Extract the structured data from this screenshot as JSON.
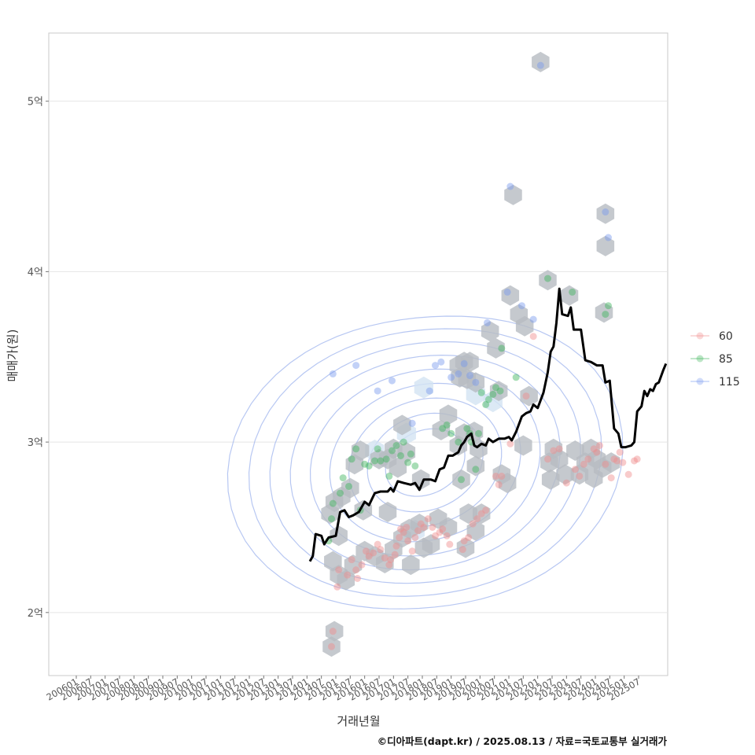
{
  "chart_data": {
    "type": "scatter",
    "xlabel": "거래년월",
    "ylabel": "매매가(원)",
    "caption": "©디아파트(dapt.kr) / 2025.08.13 / 자료=국토교통부 실거래가",
    "x_range": [
      2005.5,
      2026.2
    ],
    "ylim": [
      1.63,
      5.4
    ],
    "y_ticks": [
      {
        "value": 2,
        "label": "2억"
      },
      {
        "value": 3,
        "label": "3억"
      },
      {
        "value": 4,
        "label": "4억"
      },
      {
        "value": 5,
        "label": "5억"
      }
    ],
    "x_ticks": [
      "200601",
      "200607",
      "200701",
      "200707",
      "200801",
      "200807",
      "200901",
      "200907",
      "201001",
      "201007",
      "201101",
      "201107",
      "201201",
      "201207",
      "201301",
      "201307",
      "201401",
      "201407",
      "201501",
      "201507",
      "201601",
      "201607",
      "201701",
      "201707",
      "201801",
      "201807",
      "201901",
      "201907",
      "202001",
      "202007",
      "202101",
      "202107",
      "202201",
      "202207",
      "202301",
      "202307",
      "202401",
      "202407",
      "202501",
      "202507"
    ],
    "legend": [
      {
        "label": "60",
        "color": "#f08c8c"
      },
      {
        "label": "85",
        "color": "#3cb45a"
      },
      {
        "label": "115",
        "color": "#7799ee"
      }
    ],
    "colors": {
      "hex": "#b7bcc2",
      "hex_light": "#d3e3f3",
      "trend": "#000000",
      "contour": "#9fb4ee",
      "grid": "#e5e5e5"
    },
    "series": [
      {
        "name": "60",
        "points": [
          [
            2014.85,
            1.8
          ],
          [
            2014.9,
            1.89
          ],
          [
            2015.05,
            2.15
          ],
          [
            2015.1,
            2.25
          ],
          [
            2015.4,
            2.22
          ],
          [
            2015.55,
            2.31
          ],
          [
            2015.7,
            2.25
          ],
          [
            2015.75,
            2.2
          ],
          [
            2015.9,
            2.28
          ],
          [
            2016.05,
            2.36
          ],
          [
            2016.15,
            2.33
          ],
          [
            2016.3,
            2.35
          ],
          [
            2016.45,
            2.4
          ],
          [
            2016.55,
            2.37
          ],
          [
            2016.7,
            2.32
          ],
          [
            2016.85,
            2.28
          ],
          [
            2016.9,
            2.31
          ],
          [
            2017.05,
            2.34
          ],
          [
            2017.1,
            2.39
          ],
          [
            2017.2,
            2.44
          ],
          [
            2017.25,
            2.49
          ],
          [
            2017.35,
            2.47
          ],
          [
            2017.45,
            2.5
          ],
          [
            2017.5,
            2.42
          ],
          [
            2017.65,
            2.36
          ],
          [
            2017.75,
            2.44
          ],
          [
            2017.85,
            2.48
          ],
          [
            2017.95,
            2.52
          ],
          [
            2018.05,
            2.5
          ],
          [
            2018.2,
            2.55
          ],
          [
            2018.35,
            2.5
          ],
          [
            2018.45,
            2.45
          ],
          [
            2018.6,
            2.47
          ],
          [
            2018.7,
            2.49
          ],
          [
            2018.85,
            2.45
          ],
          [
            2018.95,
            2.4
          ],
          [
            2019.4,
            2.37
          ],
          [
            2019.45,
            2.42
          ],
          [
            2019.6,
            2.44
          ],
          [
            2019.75,
            2.52
          ],
          [
            2019.9,
            2.55
          ],
          [
            2020.05,
            2.58
          ],
          [
            2020.2,
            2.6
          ],
          [
            2020.55,
            2.8
          ],
          [
            2020.65,
            2.75
          ],
          [
            2020.75,
            2.8
          ],
          [
            2021.05,
            2.99
          ],
          [
            2021.6,
            3.27
          ],
          [
            2021.85,
            3.62
          ],
          [
            2022.35,
            2.9
          ],
          [
            2022.55,
            2.95
          ],
          [
            2022.75,
            2.96
          ],
          [
            2023.0,
            2.76
          ],
          [
            2023.3,
            2.84
          ],
          [
            2023.45,
            2.8
          ],
          [
            2023.6,
            2.87
          ],
          [
            2023.75,
            2.9
          ],
          [
            2023.95,
            2.96
          ],
          [
            2024.05,
            2.94
          ],
          [
            2024.15,
            2.98
          ],
          [
            2024.35,
            2.87
          ],
          [
            2024.55,
            2.79
          ],
          [
            2024.65,
            2.9
          ],
          [
            2024.75,
            2.89
          ],
          [
            2024.85,
            2.94
          ],
          [
            2024.95,
            2.88
          ],
          [
            2025.15,
            2.81
          ],
          [
            2025.35,
            2.89
          ],
          [
            2025.45,
            2.9
          ]
        ]
      },
      {
        "name": "85",
        "points": [
          [
            2014.75,
            2.42
          ],
          [
            2014.85,
            2.55
          ],
          [
            2014.9,
            2.64
          ],
          [
            2015.15,
            2.7
          ],
          [
            2015.25,
            2.79
          ],
          [
            2015.45,
            2.74
          ],
          [
            2015.55,
            2.9
          ],
          [
            2015.7,
            2.96
          ],
          [
            2015.85,
            2.6
          ],
          [
            2016.0,
            2.87
          ],
          [
            2016.15,
            2.86
          ],
          [
            2016.35,
            2.89
          ],
          [
            2016.45,
            2.96
          ],
          [
            2016.55,
            2.89
          ],
          [
            2016.75,
            2.9
          ],
          [
            2016.85,
            2.8
          ],
          [
            2016.95,
            2.95
          ],
          [
            2017.1,
            2.98
          ],
          [
            2017.25,
            2.92
          ],
          [
            2017.35,
            3.0
          ],
          [
            2017.5,
            2.88
          ],
          [
            2017.6,
            2.93
          ],
          [
            2017.75,
            2.86
          ],
          [
            2018.7,
            3.08
          ],
          [
            2018.85,
            3.1
          ],
          [
            2019.0,
            3.05
          ],
          [
            2019.25,
            3.0
          ],
          [
            2019.35,
            2.78
          ],
          [
            2019.55,
            3.08
          ],
          [
            2019.65,
            3.05
          ],
          [
            2019.7,
            3.0
          ],
          [
            2019.85,
            2.84
          ],
          [
            2019.95,
            3.05
          ],
          [
            2020.05,
            3.29
          ],
          [
            2020.2,
            3.22
          ],
          [
            2020.3,
            3.25
          ],
          [
            2020.45,
            3.28
          ],
          [
            2020.55,
            3.32
          ],
          [
            2020.7,
            3.3
          ],
          [
            2020.75,
            3.55
          ],
          [
            2021.25,
            3.38
          ],
          [
            2022.35,
            3.96
          ],
          [
            2023.2,
            3.88
          ],
          [
            2024.35,
            3.75
          ],
          [
            2024.45,
            3.8
          ]
        ]
      },
      {
        "name": "115",
        "points": [
          [
            2014.9,
            3.4
          ],
          [
            2015.7,
            3.45
          ],
          [
            2016.45,
            3.3
          ],
          [
            2016.95,
            3.36
          ],
          [
            2017.65,
            3.11
          ],
          [
            2018.25,
            3.3
          ],
          [
            2018.45,
            3.45
          ],
          [
            2018.65,
            3.47
          ],
          [
            2019.0,
            3.38
          ],
          [
            2019.25,
            3.4
          ],
          [
            2019.45,
            3.46
          ],
          [
            2019.65,
            3.39
          ],
          [
            2019.85,
            3.35
          ],
          [
            2020.25,
            3.7
          ],
          [
            2020.95,
            3.88
          ],
          [
            2021.05,
            4.5
          ],
          [
            2021.45,
            3.8
          ],
          [
            2021.85,
            3.72
          ],
          [
            2022.1,
            5.21
          ],
          [
            2024.35,
            4.35
          ],
          [
            2024.45,
            4.2
          ]
        ]
      }
    ],
    "trend": [
      [
        2014.1,
        2.3
      ],
      [
        2014.2,
        2.33
      ],
      [
        2014.3,
        2.46
      ],
      [
        2014.5,
        2.45
      ],
      [
        2014.6,
        2.4
      ],
      [
        2014.75,
        2.44
      ],
      [
        2015.0,
        2.45
      ],
      [
        2015.15,
        2.59
      ],
      [
        2015.3,
        2.6
      ],
      [
        2015.45,
        2.56
      ],
      [
        2015.6,
        2.57
      ],
      [
        2015.8,
        2.59
      ],
      [
        2016.0,
        2.65
      ],
      [
        2016.15,
        2.63
      ],
      [
        2016.35,
        2.7
      ],
      [
        2016.55,
        2.71
      ],
      [
        2016.8,
        2.71
      ],
      [
        2016.9,
        2.73
      ],
      [
        2017.0,
        2.71
      ],
      [
        2017.15,
        2.77
      ],
      [
        2017.35,
        2.76
      ],
      [
        2017.6,
        2.75
      ],
      [
        2017.75,
        2.76
      ],
      [
        2017.9,
        2.72
      ],
      [
        2018.05,
        2.78
      ],
      [
        2018.3,
        2.78
      ],
      [
        2018.45,
        2.77
      ],
      [
        2018.6,
        2.84
      ],
      [
        2018.75,
        2.85
      ],
      [
        2018.9,
        2.92
      ],
      [
        2019.05,
        2.92
      ],
      [
        2019.25,
        2.94
      ],
      [
        2019.35,
        2.98
      ],
      [
        2019.45,
        3.0
      ],
      [
        2019.55,
        3.03
      ],
      [
        2019.7,
        3.05
      ],
      [
        2019.8,
        2.98
      ],
      [
        2019.9,
        2.97
      ],
      [
        2020.05,
        2.99
      ],
      [
        2020.2,
        2.98
      ],
      [
        2020.3,
        3.02
      ],
      [
        2020.45,
        3.0
      ],
      [
        2020.65,
        3.02
      ],
      [
        2020.85,
        3.02
      ],
      [
        2021.0,
        3.03
      ],
      [
        2021.1,
        3.01
      ],
      [
        2021.25,
        3.06
      ],
      [
        2021.45,
        3.15
      ],
      [
        2021.6,
        3.17
      ],
      [
        2021.75,
        3.18
      ],
      [
        2021.85,
        3.22
      ],
      [
        2022.0,
        3.2
      ],
      [
        2022.2,
        3.29
      ],
      [
        2022.35,
        3.41
      ],
      [
        2022.45,
        3.53
      ],
      [
        2022.55,
        3.56
      ],
      [
        2022.65,
        3.7
      ],
      [
        2022.75,
        3.9
      ],
      [
        2022.85,
        3.75
      ],
      [
        2023.05,
        3.74
      ],
      [
        2023.15,
        3.79
      ],
      [
        2023.25,
        3.66
      ],
      [
        2023.5,
        3.66
      ],
      [
        2023.65,
        3.48
      ],
      [
        2023.85,
        3.47
      ],
      [
        2024.05,
        3.45
      ],
      [
        2024.25,
        3.45
      ],
      [
        2024.35,
        3.35
      ],
      [
        2024.5,
        3.36
      ],
      [
        2024.65,
        3.08
      ],
      [
        2024.8,
        3.05
      ],
      [
        2024.9,
        2.97
      ],
      [
        2025.05,
        2.97
      ],
      [
        2025.25,
        2.98
      ],
      [
        2025.35,
        3.0
      ],
      [
        2025.45,
        3.18
      ],
      [
        2025.6,
        3.21
      ],
      [
        2025.7,
        3.3
      ],
      [
        2025.8,
        3.27
      ],
      [
        2025.9,
        3.31
      ],
      [
        2026.0,
        3.3
      ],
      [
        2026.1,
        3.34
      ],
      [
        2026.2,
        3.35
      ],
      [
        2026.35,
        3.42
      ],
      [
        2026.45,
        3.46
      ]
    ],
    "hexbins": [
      [
        2014.85,
        1.8
      ],
      [
        2014.95,
        1.89
      ],
      [
        2014.8,
        2.58
      ],
      [
        2014.95,
        2.65
      ],
      [
        2014.9,
        2.3
      ],
      [
        2015.1,
        2.45
      ],
      [
        2015.2,
        2.68
      ],
      [
        2015.1,
        2.22
      ],
      [
        2015.35,
        2.19
      ],
      [
        2015.6,
        2.28
      ],
      [
        2015.5,
        2.73
      ],
      [
        2015.65,
        2.87
      ],
      [
        2015.85,
        2.95
      ],
      [
        2015.95,
        2.6
      ],
      [
        2016.0,
        2.36
      ],
      [
        2016.35,
        2.33
      ],
      [
        2016.7,
        2.29
      ],
      [
        2016.5,
        2.9
      ],
      [
        2016.8,
        2.9
      ],
      [
        2016.8,
        2.59
      ],
      [
        2017.0,
        2.96
      ],
      [
        2017.15,
        2.85
      ],
      [
        2017.3,
        3.1
      ],
      [
        2017.45,
        2.94
      ],
      [
        2017.0,
        2.37
      ],
      [
        2017.3,
        2.44
      ],
      [
        2017.55,
        2.49
      ],
      [
        2017.6,
        2.28
      ],
      [
        2017.95,
        2.78
      ],
      [
        2017.9,
        2.52
      ],
      [
        2018.05,
        2.38
      ],
      [
        2018.3,
        2.4
      ],
      [
        2018.55,
        2.55
      ],
      [
        2018.9,
        2.5
      ],
      [
        2018.65,
        3.07
      ],
      [
        2018.9,
        3.16
      ],
      [
        2019.25,
        3.45
      ],
      [
        2019.45,
        3.47
      ],
      [
        2019.65,
        3.47
      ],
      [
        2019.3,
        3.38
      ],
      [
        2019.55,
        3.37
      ],
      [
        2019.85,
        3.35
      ],
      [
        2019.25,
        2.98
      ],
      [
        2019.45,
        3.05
      ],
      [
        2019.8,
        3.06
      ],
      [
        2019.95,
        2.96
      ],
      [
        2019.85,
        2.86
      ],
      [
        2019.35,
        2.78
      ],
      [
        2019.6,
        2.58
      ],
      [
        2019.85,
        2.48
      ],
      [
        2019.5,
        2.38
      ],
      [
        2020.05,
        2.58
      ],
      [
        2020.35,
        3.65
      ],
      [
        2020.55,
        3.55
      ],
      [
        2020.65,
        3.3
      ],
      [
        2020.75,
        2.81
      ],
      [
        2020.95,
        2.76
      ],
      [
        2021.05,
        3.86
      ],
      [
        2021.15,
        4.45
      ],
      [
        2021.35,
        3.75
      ],
      [
        2021.55,
        3.68
      ],
      [
        2021.7,
        3.27
      ],
      [
        2021.5,
        2.98
      ],
      [
        2022.1,
        5.23
      ],
      [
        2022.35,
        3.95
      ],
      [
        2022.4,
        2.88
      ],
      [
        2022.55,
        2.96
      ],
      [
        2022.45,
        2.78
      ],
      [
        2022.75,
        2.9
      ],
      [
        2022.95,
        2.81
      ],
      [
        2023.1,
        3.86
      ],
      [
        2023.3,
        2.95
      ],
      [
        2023.45,
        2.81
      ],
      [
        2023.65,
        2.88
      ],
      [
        2023.85,
        2.96
      ],
      [
        2023.95,
        2.79
      ],
      [
        2024.05,
        2.9
      ],
      [
        2024.25,
        2.85
      ],
      [
        2024.3,
        3.76
      ],
      [
        2024.35,
        4.15
      ],
      [
        2024.35,
        4.34
      ],
      [
        2024.55,
        2.88
      ]
    ],
    "hex_light_cells": [
      [
        2016.35,
        2.95
      ],
      [
        2017.75,
        2.48
      ],
      [
        2019.85,
        3.28
      ],
      [
        2020.45,
        3.24
      ],
      [
        2017.45,
        3.05
      ],
      [
        2018.05,
        3.32
      ]
    ],
    "contour_center": [
      2018.1,
      2.88
    ]
  }
}
